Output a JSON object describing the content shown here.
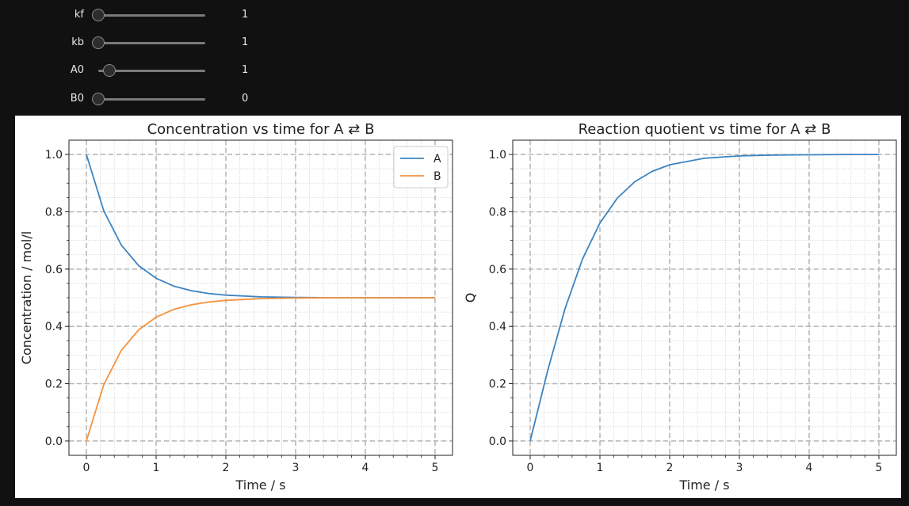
{
  "sliders": [
    {
      "label": "kf",
      "value": "1",
      "level": 0.0
    },
    {
      "label": "kb",
      "value": "1",
      "level": 0.0
    },
    {
      "label": "A0",
      "value": "1",
      "level": 0.1
    },
    {
      "label": "B0",
      "value": "0",
      "level": 0.0
    }
  ],
  "chart_data": [
    {
      "type": "line",
      "title": "Concentration vs time for A ⇄ B",
      "xlabel": "Time / s",
      "ylabel": "Concentration /  mol/l",
      "xlim": [
        -0.25,
        5.25
      ],
      "ylim": [
        -0.05,
        1.05
      ],
      "xticks": [
        "0",
        "1",
        "2",
        "3",
        "4",
        "5"
      ],
      "yticks": [
        "0.0",
        "0.2",
        "0.4",
        "0.6",
        "0.8",
        "1.0"
      ],
      "grid": true,
      "legend": "top-right",
      "x": [
        0,
        0.25,
        0.5,
        0.75,
        1.0,
        1.25,
        1.5,
        1.75,
        2.0,
        2.5,
        3.0,
        3.5,
        4.0,
        4.5,
        5.0
      ],
      "series": [
        {
          "name": "A",
          "color": "#3d84c0",
          "values": [
            1.0,
            0.803,
            0.684,
            0.612,
            0.568,
            0.541,
            0.525,
            0.515,
            0.509,
            0.503,
            0.501,
            0.5,
            0.5,
            0.5,
            0.5
          ]
        },
        {
          "name": "B",
          "color": "#f5923f",
          "values": [
            0.0,
            0.197,
            0.316,
            0.388,
            0.432,
            0.459,
            0.475,
            0.485,
            0.491,
            0.497,
            0.499,
            0.5,
            0.5,
            0.5,
            0.5
          ]
        }
      ]
    },
    {
      "type": "line",
      "title": "Reaction quotient vs time for A ⇄ B",
      "xlabel": "Time / s",
      "ylabel": "Q",
      "xlim": [
        -0.25,
        5.25
      ],
      "ylim": [
        -0.05,
        1.05
      ],
      "xticks": [
        "0",
        "1",
        "2",
        "3",
        "4",
        "5"
      ],
      "yticks": [
        "0.0",
        "0.2",
        "0.4",
        "0.6",
        "0.8",
        "1.0"
      ],
      "grid": true,
      "x": [
        0,
        0.25,
        0.5,
        0.75,
        1.0,
        1.25,
        1.5,
        1.75,
        2.0,
        2.5,
        3.0,
        3.5,
        4.0,
        4.5,
        5.0
      ],
      "series": [
        {
          "name": "",
          "color": "#3d84c0",
          "values": [
            0.0,
            0.245,
            0.462,
            0.635,
            0.761,
            0.848,
            0.905,
            0.941,
            0.964,
            0.987,
            0.995,
            0.998,
            0.999,
            1.0,
            1.0
          ]
        }
      ]
    }
  ]
}
